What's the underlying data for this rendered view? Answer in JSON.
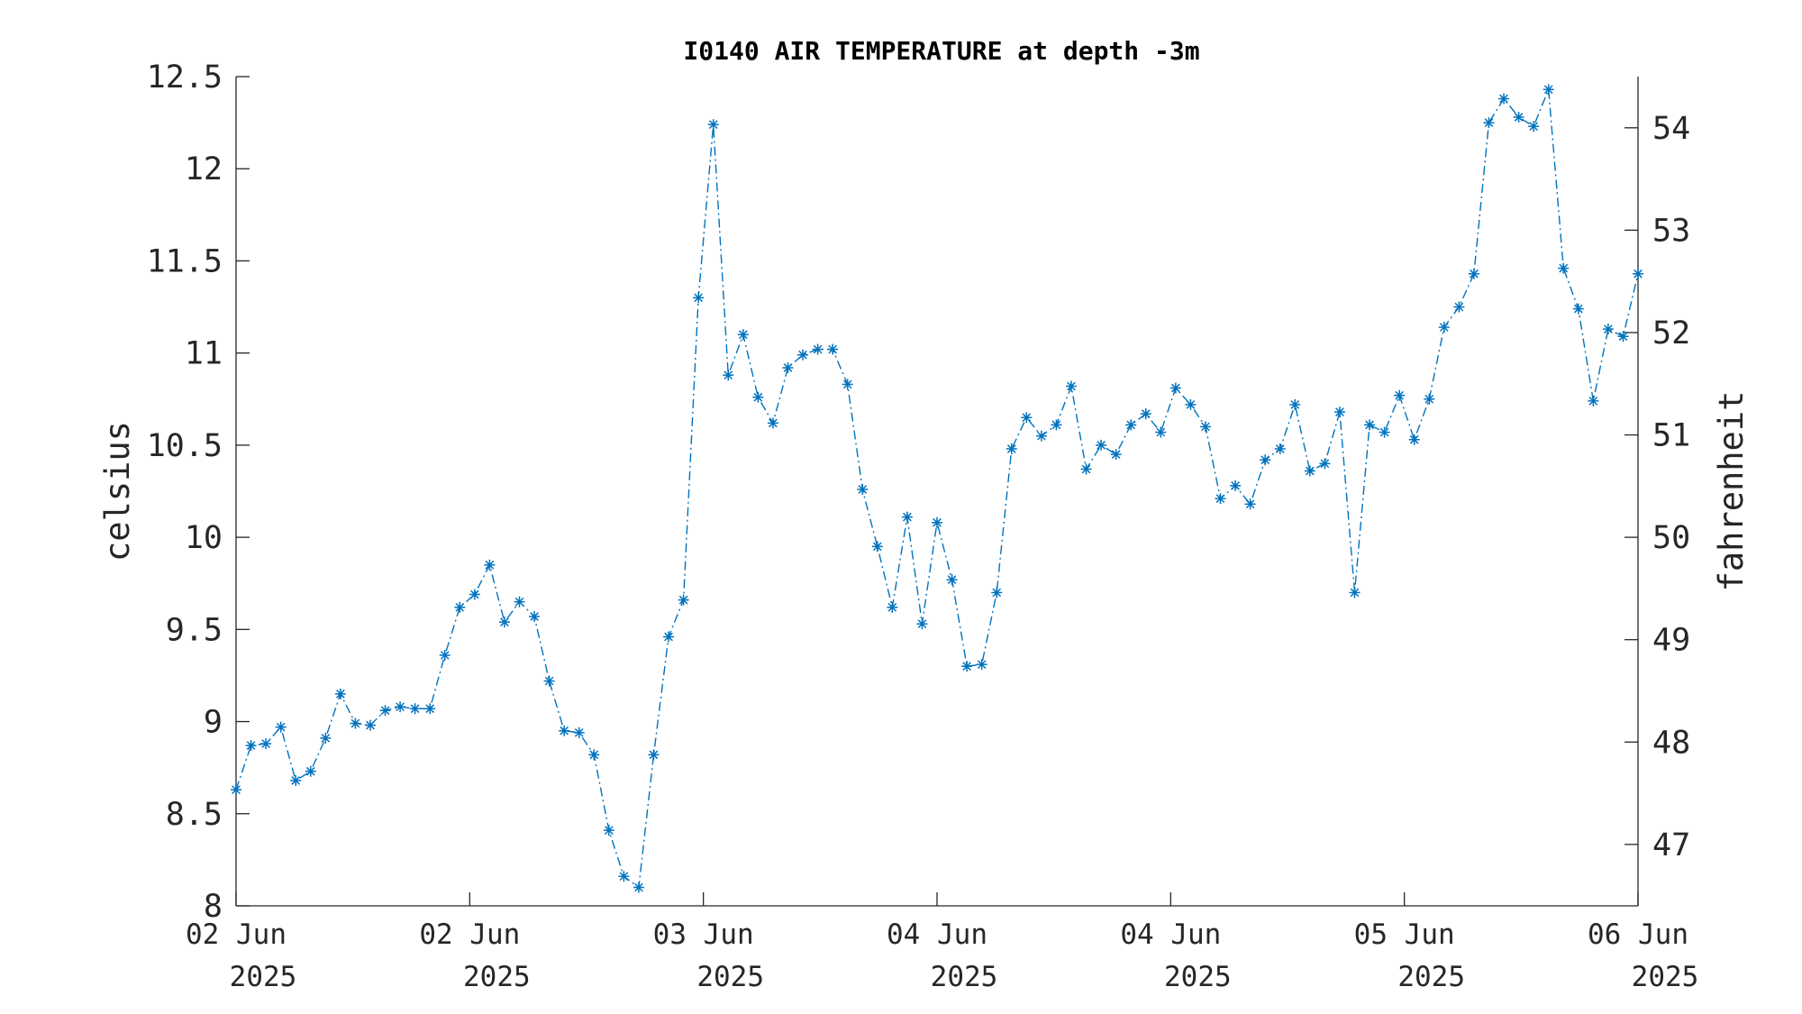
{
  "chart_data": {
    "type": "line",
    "title": "I0140 AIR TEMPERATURE at depth -3m",
    "ylabel": "celsius",
    "ylabel_right": "fahrenheit",
    "xlabel": "",
    "ylim": [
      8,
      12.5
    ],
    "ylim_right": [
      46.4,
      54.5
    ],
    "grid": false,
    "y_ticks": [
      "8",
      "8.5",
      "9",
      "9.5",
      "10",
      "10.5",
      "11",
      "11.5",
      "12",
      "12.5"
    ],
    "y_tick_values": [
      8,
      8.5,
      9,
      9.5,
      10,
      10.5,
      11,
      11.5,
      12,
      12.5
    ],
    "y_right_ticks": [
      "47",
      "48",
      "49",
      "50",
      "51",
      "52",
      "53",
      "54"
    ],
    "y_right_tick_values": [
      47,
      48,
      49,
      50,
      51,
      52,
      53,
      54
    ],
    "x_ticks": [
      {
        "day": "02 Jun",
        "year": "2025"
      },
      {
        "day": "02 Jun",
        "year": "2025"
      },
      {
        "day": "03 Jun",
        "year": "2025"
      },
      {
        "day": "04 Jun",
        "year": "2025"
      },
      {
        "day": "04 Jun",
        "year": "2025"
      },
      {
        "day": "05 Jun",
        "year": "2025"
      },
      {
        "day": "06 Jun",
        "year": "2025"
      }
    ],
    "series": [
      {
        "color": "#0072BD",
        "marker": "asterisk",
        "line_style": "dash-dot",
        "values": [
          8.63,
          8.87,
          8.88,
          8.97,
          8.68,
          8.73,
          8.91,
          9.15,
          8.99,
          8.98,
          9.06,
          9.08,
          9.07,
          9.07,
          9.36,
          9.62,
          9.69,
          9.85,
          9.54,
          9.65,
          9.57,
          9.22,
          8.95,
          8.94,
          8.82,
          8.41,
          8.16,
          8.1,
          8.82,
          9.46,
          9.66,
          11.3,
          12.24,
          10.88,
          11.1,
          10.76,
          10.62,
          10.92,
          10.99,
          11.02,
          11.02,
          10.83,
          10.26,
          9.95,
          9.62,
          10.11,
          9.53,
          10.08,
          9.77,
          9.3,
          9.31,
          9.7,
          10.48,
          10.65,
          10.55,
          10.61,
          10.82,
          10.37,
          10.5,
          10.45,
          10.61,
          10.67,
          10.57,
          10.81,
          10.72,
          10.6,
          10.21,
          10.28,
          10.18,
          10.42,
          10.48,
          10.72,
          10.36,
          10.4,
          10.68,
          9.7,
          10.61,
          10.57,
          10.77,
          10.53,
          10.75,
          11.14,
          11.25,
          11.43,
          12.25,
          12.38,
          12.28,
          12.23,
          12.43,
          11.46,
          11.24,
          10.74,
          11.13,
          11.09,
          11.43
        ]
      }
    ]
  }
}
